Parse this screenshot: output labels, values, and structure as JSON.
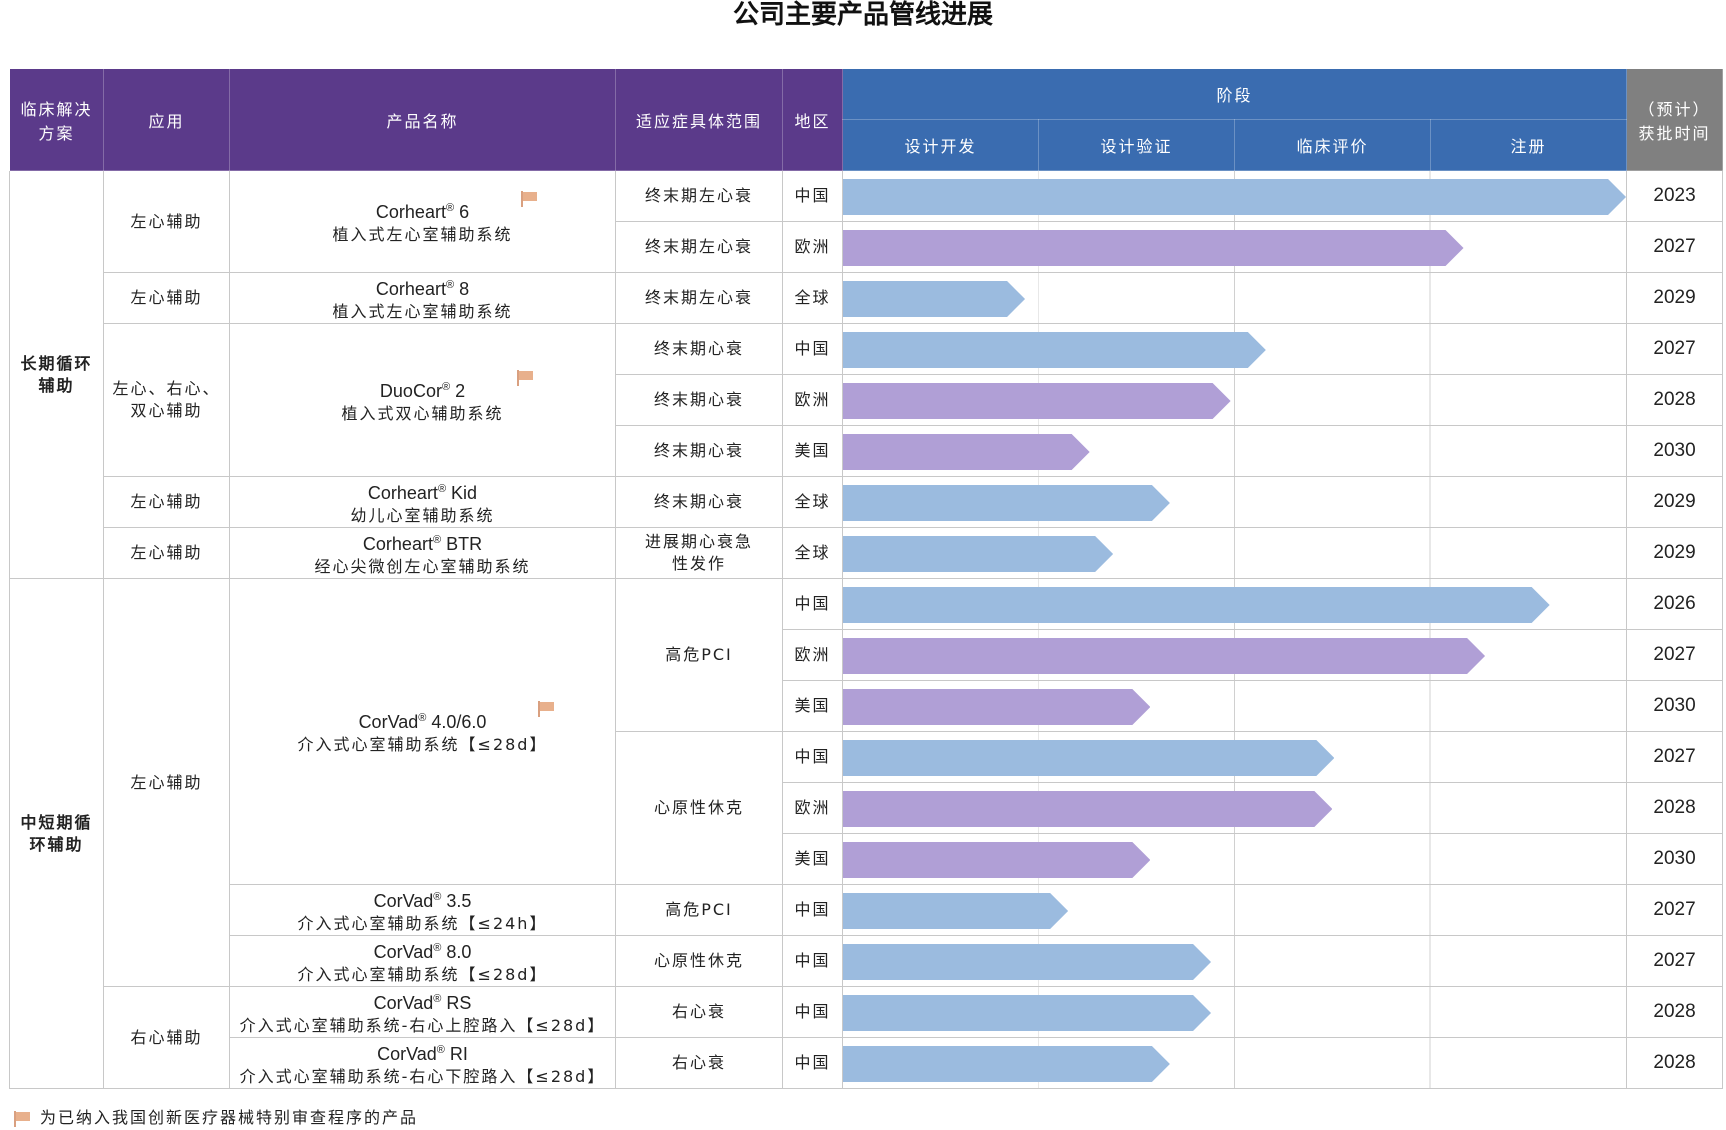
{
  "title": "公司主要产品管线进展",
  "colors": {
    "header_purple": "#5b3a8a",
    "header_blue": "#3a6cb0",
    "header_gray": "#808080",
    "bar_blue": "#9bbbdf",
    "bar_purple": "#b09fd6",
    "flag": "#e8b08c"
  },
  "header": {
    "solution": "临床解决方案",
    "application": "应用",
    "product": "产品名称",
    "indication": "适应症具体范围",
    "region": "地区",
    "stage": "阶段",
    "approval": "（预计）获批时间",
    "stages": [
      "设计开发",
      "设计验证",
      "临床评价",
      "注册"
    ]
  },
  "footnote": {
    "icon": "flag-icon",
    "text": "为已纳入我国创新医疗器械特别审查程序的产品"
  },
  "categories": [
    "长期循环辅助",
    "中短期循环辅助"
  ],
  "products": [
    {
      "brand": "Corheart",
      "reg": "®",
      "model": " 6",
      "desc": "植入式左心室辅助系统",
      "flag": true
    },
    {
      "brand": "Corheart",
      "reg": "®",
      "model": " 8",
      "desc": "植入式左心室辅助系统",
      "flag": false
    },
    {
      "brand": "DuoCor",
      "reg": "®",
      "model": " 2",
      "desc": "植入式双心辅助系统",
      "flag": true
    },
    {
      "brand": "Corheart",
      "reg": "®",
      "model": " Kid",
      "desc": "幼儿心室辅助系统",
      "flag": false
    },
    {
      "brand": "Corheart",
      "reg": "®",
      "model": " BTR",
      "desc": "经心尖微创左心室辅助系统",
      "flag": false
    },
    {
      "brand": "CorVad",
      "reg": "®",
      "model": " 4.0/6.0",
      "desc": "介入式心室辅助系统【≤28d】",
      "flag": true
    },
    {
      "brand": "CorVad",
      "reg": "®",
      "model": " 3.5",
      "desc": "介入式心室辅助系统【≤24h】",
      "flag": false
    },
    {
      "brand": "CorVad",
      "reg": "®",
      "model": " 8.0",
      "desc": "介入式心室辅助系统【≤28d】",
      "flag": false
    },
    {
      "brand": "CorVad",
      "reg": "®",
      "model": " RS",
      "desc": "介入式心室辅助系统-右心上腔路入【≤28d】",
      "flag": false
    },
    {
      "brand": "CorVad",
      "reg": "®",
      "model": " RI",
      "desc": "介入式心室辅助系统-右心下腔路入【≤28d】",
      "flag": false
    }
  ],
  "applications": [
    "左心辅助",
    "左心辅助",
    "左心、右心、双心辅助",
    "左心辅助",
    "左心辅助",
    "左心辅助",
    "右心辅助"
  ],
  "chart_data": {
    "type": "table",
    "progress_unit": "stages completed (0–4: 设计开发, 设计验证, 临床评价, 注册)",
    "rows": [
      {
        "indication": "终末期左心衰",
        "region": "中国",
        "year": "2023",
        "progress": 4.0,
        "color": "blue"
      },
      {
        "indication": "终末期左心衰",
        "region": "欧洲",
        "year": "2027",
        "progress": 3.17,
        "color": "purple"
      },
      {
        "indication": "终末期左心衰",
        "region": "全球",
        "year": "2029",
        "progress": 0.93,
        "color": "blue"
      },
      {
        "indication": "终末期心衰",
        "region": "中国",
        "year": "2027",
        "progress": 2.16,
        "color": "blue"
      },
      {
        "indication": "终末期心衰",
        "region": "欧洲",
        "year": "2028",
        "progress": 1.98,
        "color": "purple"
      },
      {
        "indication": "终末期心衰",
        "region": "美国",
        "year": "2030",
        "progress": 1.26,
        "color": "purple"
      },
      {
        "indication": "终末期心衰",
        "region": "全球",
        "year": "2029",
        "progress": 1.67,
        "color": "blue"
      },
      {
        "indication": "进展期心衰急性发作",
        "region": "全球",
        "year": "2029",
        "progress": 1.38,
        "color": "blue"
      },
      {
        "indication": "高危PCI",
        "region": "中国",
        "year": "2026",
        "progress": 3.61,
        "color": "blue"
      },
      {
        "indication": "高危PCI",
        "region": "欧洲",
        "year": "2027",
        "progress": 3.28,
        "color": "purple"
      },
      {
        "indication": "高危PCI",
        "region": "美国",
        "year": "2030",
        "progress": 1.57,
        "color": "purple"
      },
      {
        "indication": "心原性休克",
        "region": "中国",
        "year": "2027",
        "progress": 2.51,
        "color": "blue"
      },
      {
        "indication": "心原性休克",
        "region": "欧洲",
        "year": "2028",
        "progress": 2.5,
        "color": "purple"
      },
      {
        "indication": "心原性休克",
        "region": "美国",
        "year": "2030",
        "progress": 1.57,
        "color": "purple"
      },
      {
        "indication": "高危PCI",
        "region": "中国",
        "year": "2027",
        "progress": 1.15,
        "color": "blue"
      },
      {
        "indication": "心原性休克",
        "region": "中国",
        "year": "2027",
        "progress": 1.88,
        "color": "blue"
      },
      {
        "indication": "右心衰",
        "region": "中国",
        "year": "2028",
        "progress": 1.88,
        "color": "blue"
      },
      {
        "indication": "右心衰",
        "region": "中国",
        "year": "2028",
        "progress": 1.67,
        "color": "blue"
      }
    ]
  }
}
